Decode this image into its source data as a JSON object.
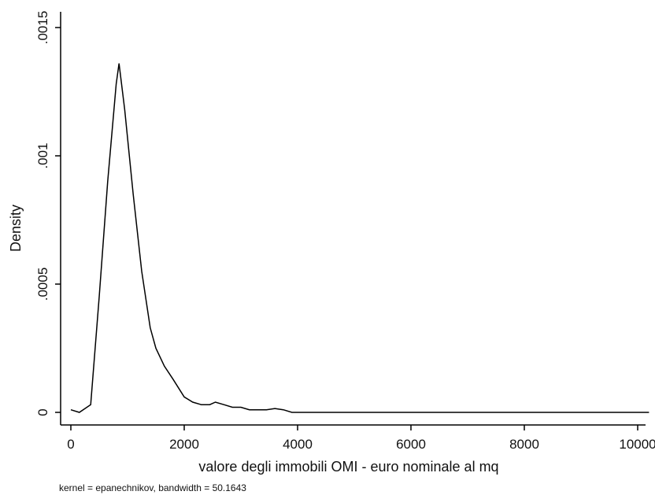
{
  "chart_data": {
    "type": "line",
    "xlabel": "valore degli immobili OMI - euro nominale al mq",
    "ylabel": "Density",
    "note": "kernel = epanechnikov, bandwidth = 50.1643",
    "xlim": [
      -200,
      10200
    ],
    "ylim": [
      -3e-05,
      0.0015
    ],
    "x_ticks": [
      0,
      2000,
      4000,
      6000,
      8000,
      10000
    ],
    "x_tick_labels": [
      "0",
      "2000",
      "4000",
      "6000",
      "8000",
      "10000"
    ],
    "y_ticks": [
      0,
      0.0005,
      0.001,
      0.0015
    ],
    "y_tick_labels": [
      "0",
      ".0005",
      ".001",
      ".0015"
    ],
    "grid": false,
    "series": [
      {
        "x": [
          0,
          150,
          350,
          500,
          650,
          800,
          850,
          950,
          1100,
          1250,
          1400,
          1500,
          1650,
          1800,
          2000,
          2150,
          2300,
          2450,
          2550,
          2700,
          2850,
          3000,
          3150,
          3300,
          3450,
          3600,
          3750,
          3900,
          4200,
          5000,
          6000,
          7000,
          8000,
          9000,
          10000,
          10200
        ],
        "y": [
          1e-05,
          0.0,
          3e-05,
          0.00045,
          0.0009,
          0.00128,
          0.00136,
          0.00118,
          0.00085,
          0.00055,
          0.00033,
          0.00025,
          0.00018,
          0.00013,
          6e-05,
          4e-05,
          3e-05,
          3e-05,
          4e-05,
          3e-05,
          2e-05,
          2e-05,
          1e-05,
          1e-05,
          1e-05,
          1.5e-05,
          1e-05,
          0.0,
          0.0,
          0.0,
          0.0,
          0.0,
          0.0,
          0.0,
          0.0,
          0.0
        ]
      }
    ]
  }
}
